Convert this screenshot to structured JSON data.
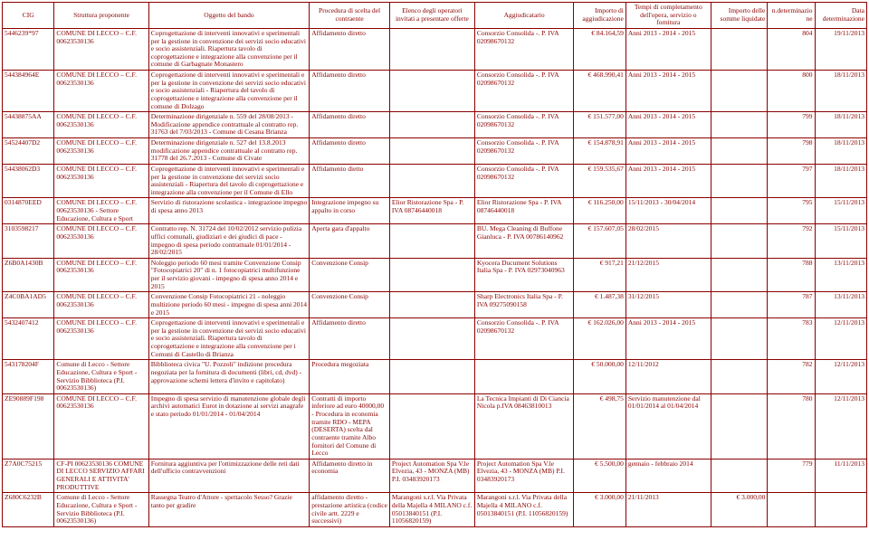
{
  "headers": {
    "cig": "CIG",
    "struttura": "Struttura proponente",
    "oggetto": "Oggetto del bando",
    "procedura": "Procedura di scelta del contraente",
    "elenco": "Elenco degli operatori invitati a presentare offerte",
    "aggiudicatario": "Aggiudicatario",
    "importo": "Importo di aggiudicazione",
    "tempi": "Tempi di completamento dell'opera, servizio o fornitura",
    "somme": "Importo delle somme liquidate",
    "ndet": "n.determinazione",
    "datadet": "Data determinazione"
  },
  "rows": [
    {
      "cig": "5446239*97",
      "struttura": "COMUNE DI LECCO – C.F. 00623530136",
      "oggetto": "Coprogettazione di interventi innovativi e sperimentali per la gestione in convenzione dei servizi socio educativi e socio assistenziali. Riapertura tavolo di coprogettazione e integrazione alla convenzione per il comune di Garbagnate Monastero",
      "procedura": "Affidamento diretto",
      "elenco": "",
      "aggiudicatario": "Consorzio Consolida -. P. IVA 02098670132",
      "importo": "€ 84.164,59",
      "tempi": "Anni 2013 - 2014 - 2015",
      "somme": "",
      "ndet": "804",
      "datadet": "19/11/2013"
    },
    {
      "cig": "544384964E",
      "struttura": "COMUNE DI LECCO – C.F. 00623530136",
      "oggetto": "Coprogettazione di interventi innovativi e sperimentali e per la gestione in convenzione dei servizi socio educativi e socio assistenziali - Riapertura del tavolo di coprogettazione e integrazione alla convenzione per il comune di Dolzago",
      "procedura": "Affidamento diretto",
      "elenco": "",
      "aggiudicatario": "Consorzio Consolida -. P. IVA 02098670132",
      "importo": "€ 468.990,41",
      "tempi": "Anni 2013 - 2014 - 2015",
      "somme": "",
      "ndet": "800",
      "datadet": "18/11/2013"
    },
    {
      "cig": "54438875AA",
      "struttura": "COMUNE DI LECCO – C.F. 00623530136",
      "oggetto": "Determinazione dirigenziale n. 559 del 28/08/2013 - Modificazione appendice contrattuale al contratto rep. 31763 del 7/03/2013 - Comune di Cesana Brianza",
      "procedura": "Affidamento diretto",
      "elenco": "",
      "aggiudicatario": "Consorzio Consolida -. P. IVA 02098670132",
      "importo": "€ 151.577,00",
      "tempi": "Anni 2013 - 2014 - 2015",
      "somme": "",
      "ndet": "799",
      "datadet": "18/11/2013"
    },
    {
      "cig": "54524407D2",
      "struttura": "COMUNE DI LECCO – C.F. 00623530136",
      "oggetto": "Determinazione dirigenziale n. 527 del 13.8.2013 modificazione appendice contrattuale al contratto rep. 31778 del 26.7.2013 - Comune di Civate",
      "procedura": "Affidamento diretto",
      "elenco": "",
      "aggiudicatario": "Consorzio Consolida -. P. IVA 02098670132",
      "importo": "€ 154.878,91",
      "tempi": "Anni 2013 - 2014 - 2015",
      "somme": "",
      "ndet": "798",
      "datadet": "18/11/2013"
    },
    {
      "cig": "54438062D3",
      "struttura": "COMUNE DI LECCO – C.F. 00623530136",
      "oggetto": "Coprogettazione di interventi innovativi e sperimentali e per la gestione in convenzione dei servizi socio assistenziali - Riapertura del tavolo di coprogettazione e integrazione alla convenzione per il Comune di Ello",
      "procedura": "Affidamento dietto",
      "elenco": "",
      "aggiudicatario": "Consorzio Consolida -. P. IVA 02098670132",
      "importo": "€ 159.535,67",
      "tempi": "Anni 2013 - 2014 - 2015",
      "somme": "",
      "ndet": "797",
      "datadet": "18/11/2013"
    },
    {
      "cig": "0314870EED",
      "struttura": "COMUNE DI LECCO – C.F. 00623530136 - Settore Educazione, Cultura e Sport",
      "oggetto": "Servizio di ristorazione scolastica - integrazione impegno di spesa anno 2013",
      "procedura": "Integrazione impegno su appalto in corso",
      "elenco": "Elior Ristorazione Spa - P. IVA 08746440018",
      "aggiudicatario": "Elior Ristorazione Spa - P. IVA 08746440018",
      "importo": "€ 116.250,00",
      "tempi": "15/11/2013 - 30/04/2014",
      "somme": "",
      "ndet": "795",
      "datadet": "15/11/2013"
    },
    {
      "cig": "3103598217",
      "struttura": "COMUNE DI LECCO – C.F. 00623530136",
      "oggetto": "Contratto rep. N. 31724 del 10/02/2012 servizio pulizia uffici comunali, giudiziari e dei giudici di pace - impegno di spesa periodo contrattuale 01/01/2014 - 28/02/2015",
      "procedura": "Aperta gara d'appalto",
      "elenco": "",
      "aggiudicatario": "BU. Mega Cleaning di Buffone Gianluca - P. IVA 00786140962",
      "importo": "€ 157.607,05",
      "tempi": "28/02/2015",
      "somme": "",
      "ndet": "792",
      "datadet": "15/11/2013"
    },
    {
      "cig": "Z6B0A1430B",
      "struttura": "COMUNE DI LECCO – C.F. 00623530136",
      "oggetto": "Noleggio periodo 60 mesi tramite Convenzione Consip \"Fotocopiatrici 20\" di n. 1 fotocopiatrici multifunzione per il servizio giovani - impegno di spesa anno 2014 e 2015",
      "procedura": "Convenzione Consip",
      "elenco": "",
      "aggiudicatario": "Kyocera Ducument Solutions Italia Spa - P. IVA 02973040963",
      "importo": "€ 917,21",
      "tempi": "21/12/2015",
      "somme": "",
      "ndet": "788",
      "datadet": "13/11/2013"
    },
    {
      "cig": "Z4C0BA1AD5",
      "struttura": "COMUNE DI LECCO – C.F. 00623530136",
      "oggetto": "Convenzione Consip Fotocopiatrici 21 - noleggio multizione periodo 60 mesi - impegno di spesa anni 2014 e 2015",
      "procedura": "Convenzione Consip",
      "elenco": "",
      "aggiudicatario": "Sharp Electronics Italia Spa - P. IVA 09275090158",
      "importo": "€ 1.487,38",
      "tempi": "31/12/2015",
      "somme": "",
      "ndet": "787",
      "datadet": "13/11/2013"
    },
    {
      "cig": "5432407412",
      "struttura": "COMUNE DI LECCO – C.F. 00623530136",
      "oggetto": "Coprogettazione di interventi innovativi e sperimentali e per la gestione in convenzione dei servizi socio educativi e socio assistenziali. Riapertura tavolo di coprogettazione e integrazione alla convenzione per i Comuni di Castello di Brianza",
      "procedura": "Affidamento diretto",
      "elenco": "",
      "aggiudicatario": "Consorzio Consolida -. P. IVA 02098670132",
      "importo": "€ 162.026,00",
      "tempi": "Anni 2013 - 2014 - 2015",
      "somme": "",
      "ndet": "783",
      "datadet": "12/11/2013"
    },
    {
      "cig": "543178204F",
      "struttura": "Comune di Lecco - Settore Educazione, Cultura e Sport - Servizio Bibblioteca (P.I. 00623530136)",
      "oggetto": "Bibblioteca civica \"U. Pozzoli\" indizione procedura negoziata per la fornitura di documenti (libri, cd, dvd) - approvazione schemi lettera d'invito e capitolato)",
      "procedura": "Procedura megoziata",
      "elenco": "",
      "aggiudicatario": "",
      "importo": "€ 50.000,00",
      "tempi": "12/11/2012",
      "somme": "",
      "ndet": "782",
      "datadet": "12/11/2013"
    },
    {
      "cig": "ZE90889F198",
      "struttura": "COMUNE DI LECCO – C.F. 00623530136",
      "oggetto": "Impegno di spesa servizio di manutenzione globale degli archivi automatici Eurot in dotazione ai servizi anagrafe e stato periodo 01/01/2014 - 01/04/2014",
      "procedura": "Contratti di importo inferiore ad euro 40000,00 - Procedura in economia tramite RDO - MEPA (DESERTA) scelta dal contraente tramite Albo fornitori del Comune di Lecco",
      "elenco": "",
      "aggiudicatario": "La Tecnica Impianti di Di Ciancia Nicola p.IVA 08463810013",
      "importo": "€ 498,75",
      "tempi": "Servizio manutenzione dal 01/01/2014 al 01/04/2014",
      "somme": "",
      "ndet": "780",
      "datadet": "12/11/2013"
    },
    {
      "cig": "Z7A0C75215",
      "struttura": "CF-PI 00623530136 COMUNE DI LECCO SERVIZIO AFFARI GENERALI E ATTIVITA' PRODUTTIVE",
      "oggetto": "Fornitura aggiuntiva per l'ottimizzazione delle reti dati dell'ufficio contravvenzioni",
      "procedura": "Affidamento diretto in economia",
      "elenco": "Project Automation Spa V.le Elvezia, 43 - MONZA (MB) P.I. 03483920173",
      "aggiudicatario": "Project Automation Spa V.le Elvezia, 43 - MONZA (MB) P.I. 03483920173",
      "importo": "€ 5.500,00",
      "tempi": "gennaio - febbraio 2014",
      "somme": "",
      "ndet": "779",
      "datadet": "11/11/2013"
    },
    {
      "cig": "Z680C6232B",
      "struttura": "Comune di Lecco - Settore Educazione, Cultura e Sport - Servizio Bibblioteca (P.I. 00623530136)",
      "oggetto": "Rassegna Teatro d'Attore - spettacolo Sesso? Grazie tanto per gradire",
      "procedura": "affidamento diretto - prestazione artistica (codice civile artt. 2229 e successivi)",
      "elenco": "Marangoni s.r.l. Via Privata della Majella 4 MILANO c.f. 05013840151 (P.I. 11056820159)",
      "aggiudicatario": "Marangoni s.r.l. Via Privata della Majella 4 MILANO c.f. 05013840151 (P.I. 11056820159)",
      "importo": "€ 3.000,00",
      "tempi": "21/11/2013",
      "somme": "€ 3.000,00",
      "ndet": "",
      "datadet": ""
    }
  ]
}
